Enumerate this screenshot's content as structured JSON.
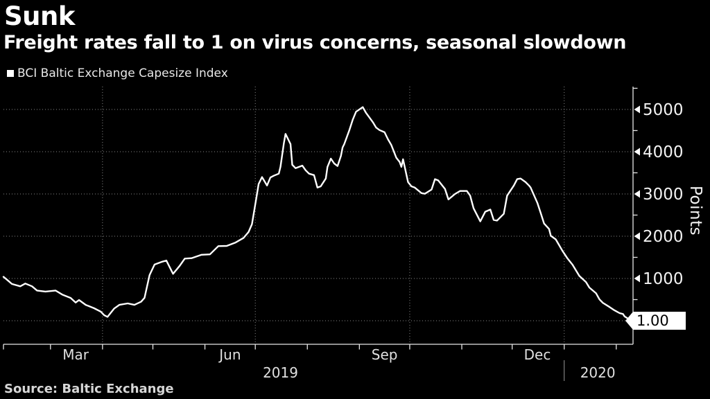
{
  "header": {
    "title": "Sunk",
    "subtitle": "Freight rates fall to 1 on virus concerns, seasonal slowdown"
  },
  "legend": {
    "label": "BCI Baltic Exchange Capesize Index"
  },
  "source": "Source: Baltic Exchange",
  "chart_data": {
    "type": "line",
    "title": "Sunk",
    "subtitle": "Freight rates fall to 1 on virus concerns, seasonal slowdown",
    "series_name": "BCI Baltic Exchange Capesize Index",
    "ylabel": "Points",
    "line_color": "#ffffff",
    "grid_color": "#8a8a8a",
    "axis_color": "#e8e8e8",
    "grid": "dotted",
    "legend_position": "top-left",
    "x_domain": [
      "2019-02-01",
      "2020-02-11"
    ],
    "ylim": [
      -557,
      5540
    ],
    "y_major_ticks": [
      1000,
      2000,
      3000,
      4000,
      5000
    ],
    "y_minor_ticks": [
      500,
      1500,
      2500,
      3500,
      4500,
      5500
    ],
    "quarter_grid_dates": [
      "2019-04-01",
      "2019-07-01",
      "2019-10-01",
      "2020-01-01"
    ],
    "month_labels": [
      {
        "label": "Mar",
        "date": "2019-03-16"
      },
      {
        "label": "Jun",
        "date": "2019-06-16"
      },
      {
        "label": "Sep",
        "date": "2019-09-16"
      },
      {
        "label": "Dec",
        "date": "2019-12-16"
      }
    ],
    "year_labels": [
      {
        "label": "2019",
        "date": "2019-07-16"
      },
      {
        "label": "2020",
        "date": "2020-01-21"
      }
    ],
    "year_divider_date": "2020-01-01",
    "last_value": 1.0,
    "last_value_label": "1.00",
    "points": [
      [
        "2019-02-01",
        1040
      ],
      [
        "2019-02-04",
        940
      ],
      [
        "2019-02-06",
        870
      ],
      [
        "2019-02-11",
        815
      ],
      [
        "2019-02-14",
        880
      ],
      [
        "2019-02-18",
        815
      ],
      [
        "2019-02-21",
        715
      ],
      [
        "2019-02-26",
        690
      ],
      [
        "2019-03-04",
        715
      ],
      [
        "2019-03-08",
        620
      ],
      [
        "2019-03-13",
        540
      ],
      [
        "2019-03-16",
        430
      ],
      [
        "2019-03-18",
        490
      ],
      [
        "2019-03-22",
        375
      ],
      [
        "2019-03-27",
        295
      ],
      [
        "2019-03-31",
        215
      ],
      [
        "2019-04-02",
        130
      ],
      [
        "2019-04-04",
        92
      ],
      [
        "2019-04-08",
        290
      ],
      [
        "2019-04-11",
        375
      ],
      [
        "2019-04-16",
        410
      ],
      [
        "2019-04-20",
        375
      ],
      [
        "2019-04-24",
        450
      ],
      [
        "2019-04-26",
        540
      ],
      [
        "2019-04-29",
        1080
      ],
      [
        "2019-05-02",
        1330
      ],
      [
        "2019-05-06",
        1390
      ],
      [
        "2019-05-09",
        1425
      ],
      [
        "2019-05-13",
        1110
      ],
      [
        "2019-05-17",
        1300
      ],
      [
        "2019-05-20",
        1470
      ],
      [
        "2019-05-24",
        1480
      ],
      [
        "2019-05-30",
        1560
      ],
      [
        "2019-06-04",
        1570
      ],
      [
        "2019-06-09",
        1765
      ],
      [
        "2019-06-14",
        1770
      ],
      [
        "2019-06-19",
        1845
      ],
      [
        "2019-06-24",
        1960
      ],
      [
        "2019-06-27",
        2100
      ],
      [
        "2019-06-29",
        2285
      ],
      [
        "2019-07-02",
        2990
      ],
      [
        "2019-07-03",
        3235
      ],
      [
        "2019-07-05",
        3400
      ],
      [
        "2019-07-08",
        3200
      ],
      [
        "2019-07-10",
        3390
      ],
      [
        "2019-07-12",
        3430
      ],
      [
        "2019-07-15",
        3480
      ],
      [
        "2019-07-16",
        3640
      ],
      [
        "2019-07-18",
        4200
      ],
      [
        "2019-07-19",
        4420
      ],
      [
        "2019-07-22",
        4180
      ],
      [
        "2019-07-23",
        3690
      ],
      [
        "2019-07-25",
        3610
      ],
      [
        "2019-07-29",
        3670
      ],
      [
        "2019-07-31",
        3560
      ],
      [
        "2019-08-02",
        3480
      ],
      [
        "2019-08-05",
        3445
      ],
      [
        "2019-08-07",
        3150
      ],
      [
        "2019-08-09",
        3180
      ],
      [
        "2019-08-12",
        3365
      ],
      [
        "2019-08-13",
        3640
      ],
      [
        "2019-08-15",
        3835
      ],
      [
        "2019-08-17",
        3720
      ],
      [
        "2019-08-19",
        3660
      ],
      [
        "2019-08-21",
        3900
      ],
      [
        "2019-08-22",
        4100
      ],
      [
        "2019-08-23",
        4180
      ],
      [
        "2019-08-26",
        4505
      ],
      [
        "2019-08-28",
        4750
      ],
      [
        "2019-08-30",
        4945
      ],
      [
        "2019-09-03",
        5055
      ],
      [
        "2019-09-05",
        4915
      ],
      [
        "2019-09-09",
        4700
      ],
      [
        "2019-09-11",
        4570
      ],
      [
        "2019-09-13",
        4510
      ],
      [
        "2019-09-16",
        4460
      ],
      [
        "2019-09-18",
        4295
      ],
      [
        "2019-09-20",
        4160
      ],
      [
        "2019-09-23",
        3855
      ],
      [
        "2019-09-25",
        3755
      ],
      [
        "2019-09-26",
        3640
      ],
      [
        "2019-09-27",
        3820
      ],
      [
        "2019-09-30",
        3280
      ],
      [
        "2019-10-02",
        3180
      ],
      [
        "2019-10-04",
        3150
      ],
      [
        "2019-10-08",
        3020
      ],
      [
        "2019-10-10",
        3005
      ],
      [
        "2019-10-14",
        3105
      ],
      [
        "2019-10-16",
        3350
      ],
      [
        "2019-10-18",
        3320
      ],
      [
        "2019-10-22",
        3120
      ],
      [
        "2019-10-24",
        2870
      ],
      [
        "2019-10-28",
        3000
      ],
      [
        "2019-10-31",
        3070
      ],
      [
        "2019-11-04",
        3070
      ],
      [
        "2019-11-06",
        2960
      ],
      [
        "2019-11-08",
        2660
      ],
      [
        "2019-11-12",
        2350
      ],
      [
        "2019-11-15",
        2580
      ],
      [
        "2019-11-18",
        2630
      ],
      [
        "2019-11-20",
        2385
      ],
      [
        "2019-11-22",
        2370
      ],
      [
        "2019-11-26",
        2530
      ],
      [
        "2019-11-28",
        2960
      ],
      [
        "2019-12-02",
        3200
      ],
      [
        "2019-12-04",
        3350
      ],
      [
        "2019-12-06",
        3365
      ],
      [
        "2019-12-09",
        3280
      ],
      [
        "2019-12-11",
        3200
      ],
      [
        "2019-12-12",
        3150
      ],
      [
        "2019-12-16",
        2790
      ],
      [
        "2019-12-18",
        2550
      ],
      [
        "2019-12-20",
        2300
      ],
      [
        "2019-12-23",
        2170
      ],
      [
        "2019-12-24",
        2010
      ],
      [
        "2019-12-27",
        1925
      ],
      [
        "2019-12-31",
        1650
      ],
      [
        "2020-01-03",
        1470
      ],
      [
        "2020-01-06",
        1325
      ],
      [
        "2020-01-08",
        1190
      ],
      [
        "2020-01-10",
        1060
      ],
      [
        "2020-01-14",
        915
      ],
      [
        "2020-01-16",
        785
      ],
      [
        "2020-01-20",
        650
      ],
      [
        "2020-01-22",
        505
      ],
      [
        "2020-01-24",
        425
      ],
      [
        "2020-01-28",
        325
      ],
      [
        "2020-01-31",
        245
      ],
      [
        "2020-02-03",
        180
      ],
      [
        "2020-02-05",
        160
      ],
      [
        "2020-02-06",
        100
      ],
      [
        "2020-02-10",
        1
      ]
    ]
  }
}
